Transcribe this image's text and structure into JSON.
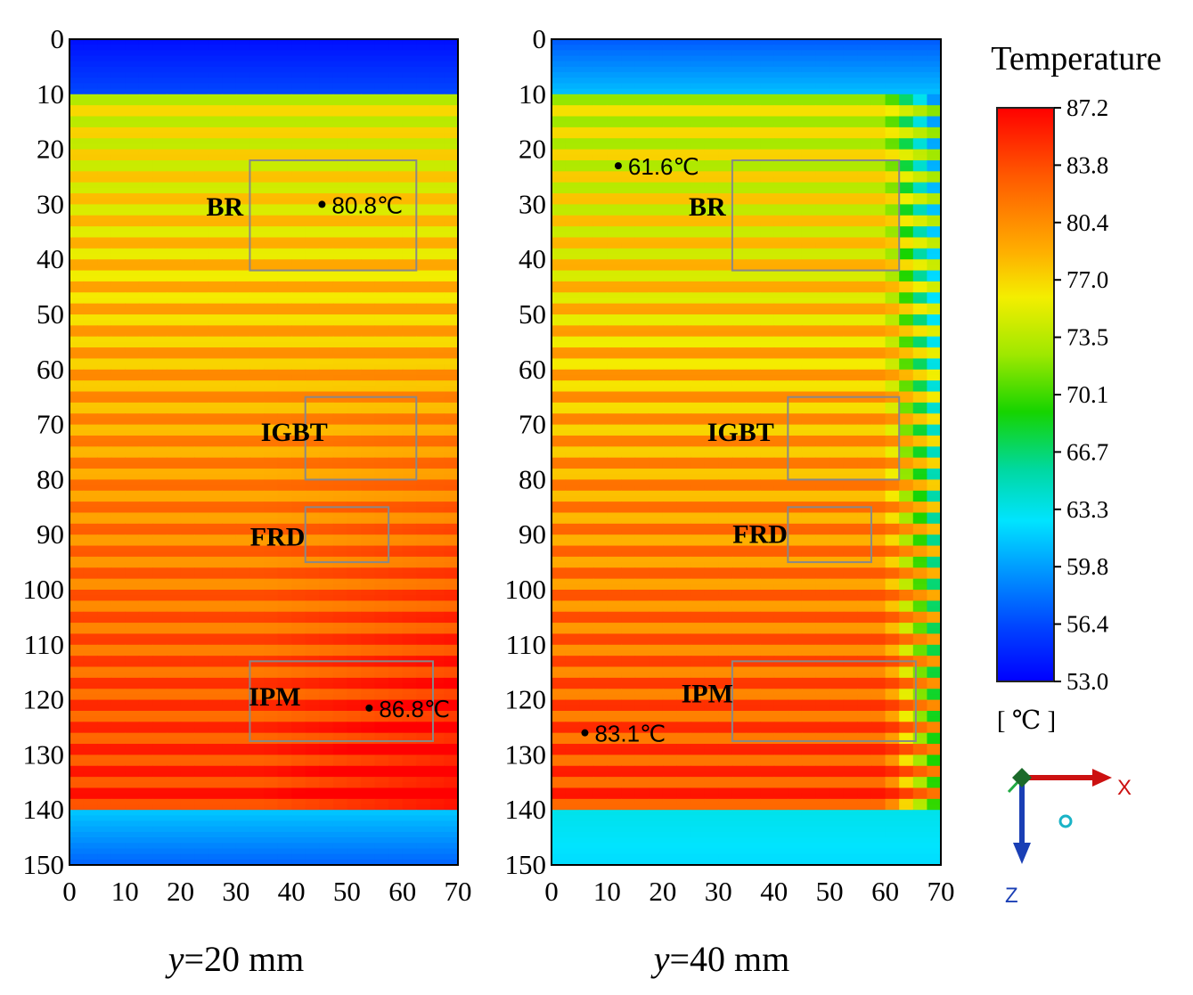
{
  "chart_data": {
    "type": "heatmap",
    "colorbar": {
      "title": "Temperature",
      "unit": "[ ℃ ]",
      "ticks": [
        "87.2",
        "83.8",
        "80.4",
        "77.0",
        "73.5",
        "70.1",
        "66.7",
        "63.3",
        "59.8",
        "56.4",
        "53.0"
      ],
      "min": 53.0,
      "max": 87.2
    },
    "panels": [
      {
        "caption_var": "y",
        "caption_rest": "=20 mm",
        "x_ticks": [
          "0",
          "10",
          "20",
          "30",
          "40",
          "50",
          "60",
          "70"
        ],
        "y_ticks": [
          "0",
          "10",
          "20",
          "30",
          "40",
          "50",
          "60",
          "70",
          "80",
          "90",
          "100",
          "110",
          "120",
          "130",
          "140",
          "150"
        ],
        "xlim": [
          0,
          70
        ],
        "ylim": [
          0,
          150
        ],
        "regions": [
          {
            "label": "BR",
            "x": [
              32.5,
              62.5
            ],
            "z": [
              22,
              42
            ],
            "label_at": [
              28,
              32
            ]
          },
          {
            "label": "IGBT",
            "x": [
              42.5,
              62.5
            ],
            "z": [
              65,
              80
            ],
            "label_at": [
              40.5,
              73
            ]
          },
          {
            "label": "FRD",
            "x": [
              42.5,
              57.5
            ],
            "z": [
              85,
              95
            ],
            "label_at": [
              37.5,
              92
            ]
          },
          {
            "label": "IPM",
            "x": [
              32.5,
              65.5
            ],
            "z": [
              113,
              127.5
            ],
            "label_at": [
              37,
              121
            ]
          }
        ],
        "probes": [
          {
            "x": 45.5,
            "z": 30,
            "text": "80.8℃"
          },
          {
            "x": 54,
            "z": 121.5,
            "text": "86.8℃"
          }
        ]
      },
      {
        "caption_var": "y",
        "caption_rest": "=40 mm",
        "x_ticks": [
          "0",
          "10",
          "20",
          "30",
          "40",
          "50",
          "60",
          "70"
        ],
        "y_ticks": [
          "0",
          "10",
          "20",
          "30",
          "40",
          "50",
          "60",
          "70",
          "80",
          "90",
          "100",
          "110",
          "120",
          "130",
          "140",
          "150"
        ],
        "xlim": [
          0,
          70
        ],
        "ylim": [
          0,
          150
        ],
        "regions": [
          {
            "label": "BR",
            "x": [
              32.5,
              62.5
            ],
            "z": [
              22,
              42
            ],
            "label_at": [
              28,
              32
            ]
          },
          {
            "label": "IGBT",
            "x": [
              42.5,
              62.5
            ],
            "z": [
              65,
              80
            ],
            "label_at": [
              34,
              73
            ]
          },
          {
            "label": "FRD",
            "x": [
              42.5,
              57.5
            ],
            "z": [
              85,
              95
            ],
            "label_at": [
              37.5,
              91.5
            ]
          },
          {
            "label": "IPM",
            "x": [
              32.5,
              65.5
            ],
            "z": [
              113,
              127.5
            ],
            "label_at": [
              28,
              120.5
            ]
          }
        ],
        "probes": [
          {
            "x": 12,
            "z": 23,
            "text": "61.6℃"
          },
          {
            "x": 6,
            "z": 126,
            "text": "83.1℃"
          }
        ]
      }
    ]
  },
  "axis_triad": {
    "x_label": "X",
    "z_label": "Z",
    "x_color": "#cc1111",
    "z_color": "#1a3fb5",
    "y_color": "#22aa44"
  }
}
